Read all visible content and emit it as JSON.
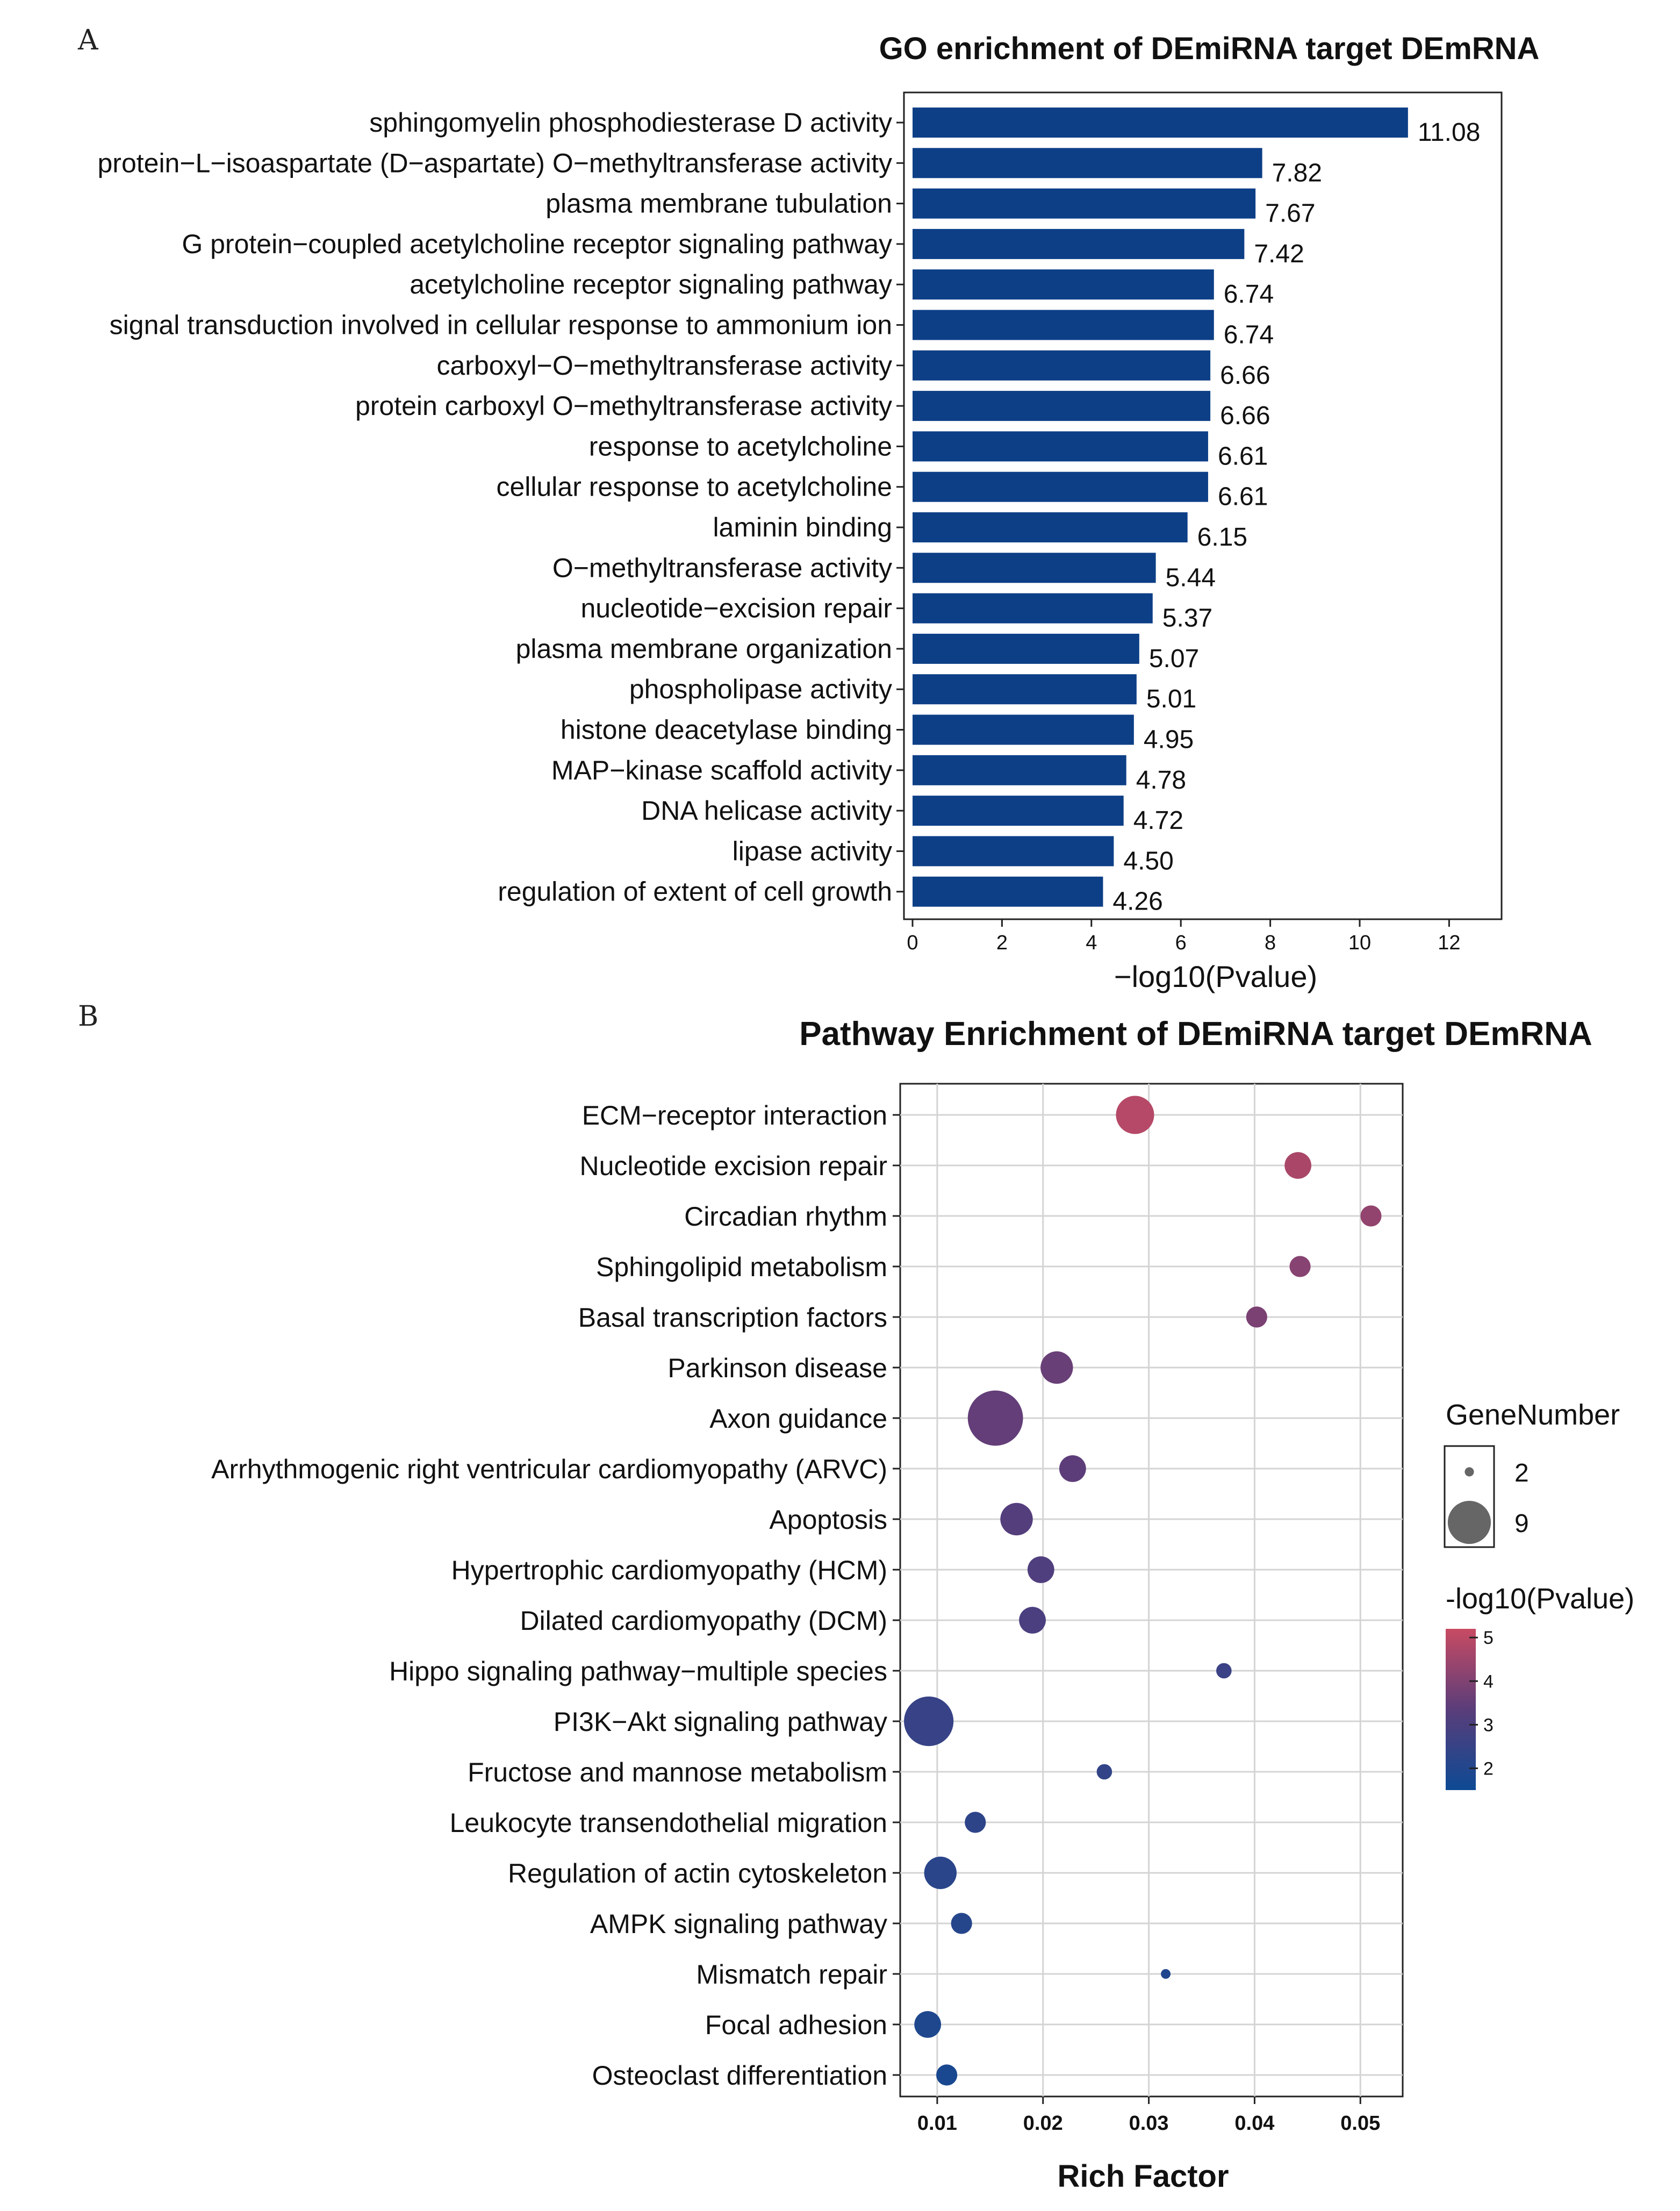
{
  "chart_data": [
    {
      "panel": "A",
      "type": "bar",
      "orientation": "horizontal",
      "title": "GO enrichment of DEmiRNA target DEmRNA",
      "xlabel": "−log10(Pvalue)",
      "ylabel": "",
      "xlim": [
        0,
        13
      ],
      "xticks": [
        "0",
        "2",
        "4",
        "6",
        "8",
        "10",
        "12"
      ],
      "bar_color": "#0d3f87",
      "categories": [
        "sphingomyelin phosphodiesterase D activity",
        "protein−L−isoaspartate (D−aspartate) O−methyltransferase activity",
        "plasma membrane tubulation",
        "G protein−coupled acetylcholine receptor signaling pathway",
        "acetylcholine receptor signaling pathway",
        "signal transduction involved in cellular response to ammonium ion",
        "carboxyl−O−methyltransferase activity",
        "protein carboxyl O−methyltransferase activity",
        "response to acetylcholine",
        "cellular response to acetylcholine",
        "laminin binding",
        "O−methyltransferase activity",
        "nucleotide−excision repair",
        "plasma membrane organization",
        "phospholipase activity",
        "histone deacetylase binding",
        "MAP−kinase scaffold activity",
        "DNA helicase activity",
        "lipase activity",
        "regulation of extent of cell growth"
      ],
      "values": [
        11.08,
        7.82,
        7.67,
        7.42,
        6.74,
        6.74,
        6.66,
        6.66,
        6.61,
        6.61,
        6.15,
        5.44,
        5.37,
        5.07,
        5.01,
        4.95,
        4.78,
        4.72,
        4.5,
        4.26
      ],
      "value_labels": [
        "11.08",
        "7.82",
        "7.67",
        "7.42",
        "6.74",
        "6.74",
        "6.66",
        "6.66",
        "6.61",
        "6.61",
        "6.15",
        "5.44",
        "5.37",
        "5.07",
        "5.01",
        "4.95",
        "4.78",
        "4.72",
        "4.50",
        "4.26"
      ]
    },
    {
      "panel": "B",
      "type": "scatter",
      "title": "Pathway Enrichment of DEmiRNA target DEmRNA",
      "xlabel": "Rich Factor",
      "ylabel": "",
      "xlim": [
        0.0065,
        0.054
      ],
      "xticks": [
        {
          "value": 0.01,
          "label": "0.01"
        },
        {
          "value": 0.02,
          "label": "0.02"
        },
        {
          "value": 0.03,
          "label": "0.03"
        },
        {
          "value": 0.04,
          "label": "0.04"
        },
        {
          "value": 0.05,
          "label": "0.05"
        }
      ],
      "grid": true,
      "categories": [
        "ECM−receptor interaction",
        "Nucleotide excision repair",
        "Circadian rhythm",
        "Sphingolipid metabolism",
        "Basal transcription factors",
        "Parkinson disease",
        "Axon guidance",
        "Arrhythmogenic right ventricular cardiomyopathy (ARVC)",
        "Apoptosis",
        "Hypertrophic cardiomyopathy (HCM)",
        "Dilated cardiomyopathy (DCM)",
        "Hippo signaling pathway−multiple species",
        "PI3K−Akt signaling pathway",
        "Fructose and mannose metabolism",
        "Leukocyte transendothelial migration",
        "Regulation of actin cytoskeleton",
        "AMPK signaling pathway",
        "Mismatch repair",
        "Focal adhesion",
        "Osteoclast differentiation"
      ],
      "rich_factor": [
        0.0287,
        0.0441,
        0.051,
        0.0443,
        0.0402,
        0.0213,
        0.0155,
        0.0228,
        0.0175,
        0.0198,
        0.019,
        0.0371,
        0.0092,
        0.0258,
        0.0136,
        0.0103,
        0.0123,
        0.0316,
        0.0091,
        0.0109
      ],
      "gene_number": [
        6,
        4,
        3,
        3,
        3,
        5,
        9,
        4,
        5,
        4,
        4,
        2,
        8,
        2,
        3,
        5,
        3,
        1,
        4,
        3
      ],
      "neg_log10_pvalue": [
        4.9,
        4.7,
        4.3,
        4.1,
        3.9,
        3.6,
        3.5,
        3.4,
        3.2,
        3.1,
        3.0,
        2.6,
        2.5,
        2.4,
        2.3,
        2.2,
        2.1,
        2.0,
        1.9,
        1.8
      ],
      "size_legend": {
        "title": "GeneNumber",
        "items": [
          {
            "value": 2,
            "label": "2"
          },
          {
            "value": 9,
            "label": "9"
          }
        ]
      },
      "color_legend": {
        "title": "-log10(Pvalue)",
        "range": [
          1.5,
          5.2
        ],
        "ticks": [
          {
            "value": 5,
            "label": "5"
          },
          {
            "value": 4,
            "label": "4"
          },
          {
            "value": 3,
            "label": "3"
          },
          {
            "value": 2,
            "label": "2"
          }
        ],
        "low_color": "#0d4a94",
        "mid_color": "#5a3d7a",
        "high_color": "#c84b63"
      }
    }
  ],
  "panel_labels": {
    "a": "A",
    "b": "B"
  }
}
